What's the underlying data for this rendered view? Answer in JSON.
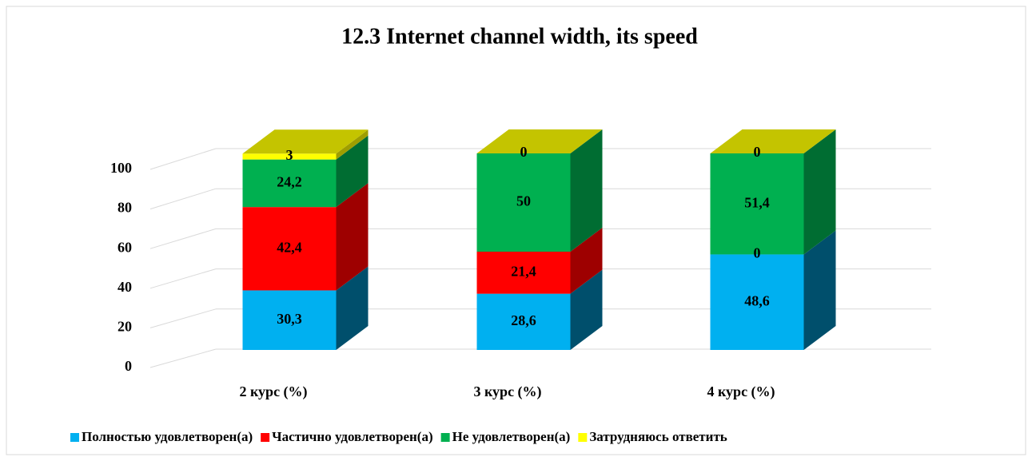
{
  "chart_data": {
    "type": "bar3d_stacked",
    "title": "12.3 Internet channel width, its speed",
    "categories": [
      "2 курс (%)",
      "3 курс (%)",
      "4 курс (%)"
    ],
    "series": [
      {
        "name": "Полностью удовлетворен(а)",
        "color": "#00b0f0",
        "values": [
          30.3,
          28.6,
          48.6
        ],
        "value_labels": [
          "30,3",
          "28,6",
          "48,6"
        ]
      },
      {
        "name": "Частично удовлетворен(а)",
        "color": "#ff0000",
        "values": [
          42.4,
          21.4,
          0
        ],
        "value_labels": [
          "42,4",
          "21,4",
          "0"
        ]
      },
      {
        "name": "Не удовлетворен(а)",
        "color": "#00b050",
        "values": [
          24.2,
          50,
          51.4
        ],
        "value_labels": [
          "24,2",
          "50",
          "51,4"
        ]
      },
      {
        "name": "Затрудняюсь ответить",
        "color": "#ffff00",
        "values": [
          3,
          0,
          0
        ],
        "value_labels": [
          "3",
          "0",
          "0"
        ]
      }
    ],
    "ylim": [
      0,
      100
    ],
    "yticks": [
      0,
      20,
      40,
      60,
      80,
      100
    ],
    "grid": true,
    "legend": "bottom"
  }
}
